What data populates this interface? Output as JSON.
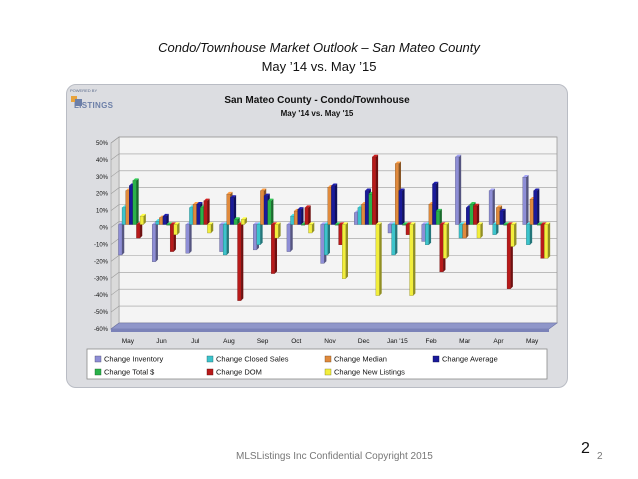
{
  "slide": {
    "title": "Condo/Townhouse Market Outlook – San Mateo County",
    "subtitle": "May ’14 vs. May ’15",
    "footer": "MLSListings Inc Confidential Copyright 2015",
    "page_number_large": "2",
    "page_number_small": "2"
  },
  "logo": {
    "powered_by": "POWERED BY",
    "brand": "LISTINGS"
  },
  "chart_data": {
    "type": "bar",
    "title": "San Mateo County - Condo/Townhouse",
    "subtitle": "May '14 vs. May '15",
    "xlabel": "",
    "ylabel": "",
    "ylim": [
      -60,
      50
    ],
    "yticks": [
      "50%",
      "40%",
      "30%",
      "20%",
      "10%",
      "0%",
      "-10%",
      "-20%",
      "-30%",
      "-40%",
      "-50%",
      "-60%"
    ],
    "ytick_values": [
      50,
      40,
      30,
      20,
      10,
      0,
      -10,
      -20,
      -30,
      -40,
      -50,
      -60
    ],
    "grid": true,
    "legend_position": "bottom",
    "categories": [
      "May",
      "Jun",
      "Jul",
      "Aug",
      "Sep",
      "Oct",
      "Nov",
      "Dec",
      "Jan '15",
      "Feb",
      "Mar",
      "Apr",
      "May"
    ],
    "series": [
      {
        "name": "Change Inventory",
        "color": "#8e8ed6",
        "values": [
          -18,
          -22,
          -17,
          -16,
          -15,
          -16,
          -23,
          7,
          -5,
          -10,
          40,
          20,
          28
        ]
      },
      {
        "name": "Change Closed Sales",
        "color": "#3cc4cc",
        "values": [
          10,
          2,
          10,
          -18,
          -12,
          5,
          -18,
          10,
          -18,
          -12,
          -8,
          -6,
          -12
        ]
      },
      {
        "name": "Change Median",
        "color": "#e08a3c",
        "values": [
          20,
          4,
          12,
          18,
          20,
          8,
          22,
          12,
          36,
          12,
          -8,
          10,
          15
        ]
      },
      {
        "name": "Change Average",
        "color": "#1a1a9a",
        "values": [
          23,
          5,
          12,
          16,
          17,
          9,
          23,
          20,
          20,
          24,
          10,
          8,
          20
        ]
      },
      {
        "name": "Change Total $",
        "color": "#2ab24a",
        "values": [
          26,
          0,
          10,
          3,
          14,
          0,
          0,
          18,
          0,
          8,
          12,
          0,
          0
        ]
      },
      {
        "name": "Change DOM",
        "color": "#b81a1a",
        "values": [
          -8,
          -16,
          14,
          -45,
          -29,
          10,
          -12,
          40,
          -6,
          -28,
          11,
          -38,
          -20
        ]
      },
      {
        "name": "Change New Listings",
        "color": "#f2ee3c",
        "values": [
          5,
          -6,
          -5,
          3,
          -8,
          -5,
          -32,
          -42,
          -42,
          -20,
          -8,
          -13,
          -20
        ]
      }
    ]
  }
}
